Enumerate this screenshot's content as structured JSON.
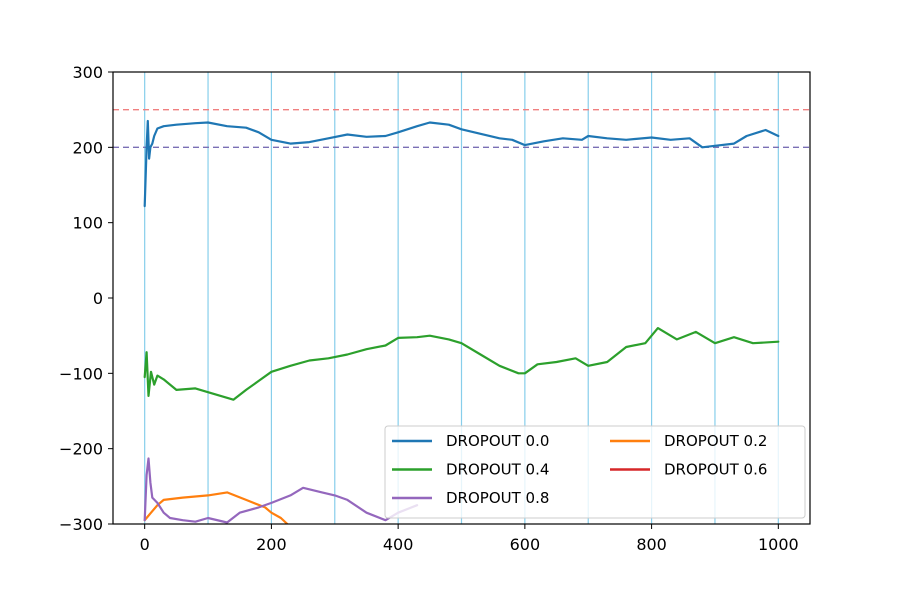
{
  "chart_data": {
    "type": "line",
    "title": "",
    "xlabel": "",
    "ylabel": "",
    "xlim": [
      -50,
      1050
    ],
    "ylim": [
      -300,
      300
    ],
    "xticks": [
      0,
      200,
      400,
      600,
      800,
      1000
    ],
    "xtick_labels": [
      "0",
      "200",
      "400",
      "600",
      "800",
      "1000"
    ],
    "yticks": [
      -300,
      -200,
      -100,
      0,
      100,
      200,
      300
    ],
    "ytick_labels": [
      "−300",
      "−200",
      "−100",
      "0",
      "100",
      "200",
      "300"
    ],
    "grid": false,
    "vertical_reference_lines": {
      "x": [
        0,
        100,
        200,
        300,
        400,
        500,
        600,
        700,
        800,
        900,
        1000
      ],
      "color": "#87ceeb"
    },
    "horizontal_reference_lines": [
      {
        "y": 250,
        "color": "#f08080",
        "style": "dashed"
      },
      {
        "y": 200,
        "color": "#7a6fb5",
        "style": "dashed"
      }
    ],
    "legend": {
      "placement": "lower-right",
      "columns": 2
    },
    "series": [
      {
        "name": "DROPOUT 0.0",
        "color": "#1f77b4",
        "x": [
          0,
          3,
          5,
          7,
          9,
          12,
          15,
          20,
          30,
          50,
          80,
          100,
          130,
          160,
          180,
          200,
          230,
          260,
          290,
          320,
          350,
          380,
          400,
          430,
          450,
          480,
          500,
          530,
          560,
          580,
          600,
          630,
          660,
          690,
          700,
          730,
          760,
          800,
          830,
          860,
          880,
          900,
          930,
          950,
          980,
          1000
        ],
        "y": [
          122,
          200,
          235,
          185,
          200,
          205,
          215,
          225,
          228,
          230,
          232,
          233,
          228,
          226,
          220,
          210,
          205,
          207,
          212,
          217,
          214,
          215,
          220,
          228,
          233,
          230,
          224,
          218,
          212,
          210,
          203,
          208,
          212,
          210,
          215,
          212,
          210,
          213,
          210,
          212,
          200,
          202,
          205,
          215,
          223,
          215
        ]
      },
      {
        "name": "DROPOUT 0.2",
        "color": "#ff7f0e",
        "x": [
          0,
          5,
          10,
          20,
          30,
          60,
          100,
          130,
          160,
          190,
          200,
          215,
          225
        ],
        "y": [
          -295,
          -290,
          -285,
          -275,
          -268,
          -265,
          -262,
          -258,
          -268,
          -278,
          -285,
          -292,
          -300
        ]
      },
      {
        "name": "DROPOUT 0.4",
        "color": "#2ca02c",
        "x": [
          0,
          3,
          6,
          10,
          15,
          20,
          30,
          50,
          80,
          100,
          120,
          140,
          160,
          180,
          200,
          230,
          260,
          290,
          320,
          350,
          380,
          400,
          430,
          450,
          480,
          500,
          530,
          560,
          590,
          600,
          620,
          650,
          680,
          700,
          730,
          760,
          790,
          810,
          840,
          870,
          900,
          930,
          960,
          1000
        ],
        "y": [
          -105,
          -72,
          -130,
          -98,
          -115,
          -103,
          -108,
          -122,
          -120,
          -125,
          -130,
          -135,
          -122,
          -110,
          -98,
          -90,
          -83,
          -80,
          -75,
          -68,
          -63,
          -53,
          -52,
          -50,
          -55,
          -60,
          -75,
          -90,
          -100,
          -100,
          -88,
          -85,
          -80,
          -90,
          -85,
          -65,
          -60,
          -40,
          -55,
          -45,
          -60,
          -52,
          -60,
          -58
        ]
      },
      {
        "name": "DROPOUT 0.6",
        "color": "#d62728",
        "x": [],
        "y": []
      },
      {
        "name": "DROPOUT 0.8",
        "color": "#9467bd",
        "x": [
          0,
          3,
          6,
          9,
          12,
          20,
          30,
          40,
          60,
          80,
          100,
          130,
          150,
          180,
          200,
          230,
          250,
          280,
          300,
          320,
          350,
          380,
          400,
          430
        ],
        "y": [
          -295,
          -235,
          -213,
          -245,
          -265,
          -272,
          -285,
          -292,
          -295,
          -297,
          -292,
          -298,
          -285,
          -278,
          -272,
          -262,
          -252,
          -258,
          -262,
          -268,
          -285,
          -295,
          -285,
          -275
        ]
      }
    ]
  }
}
